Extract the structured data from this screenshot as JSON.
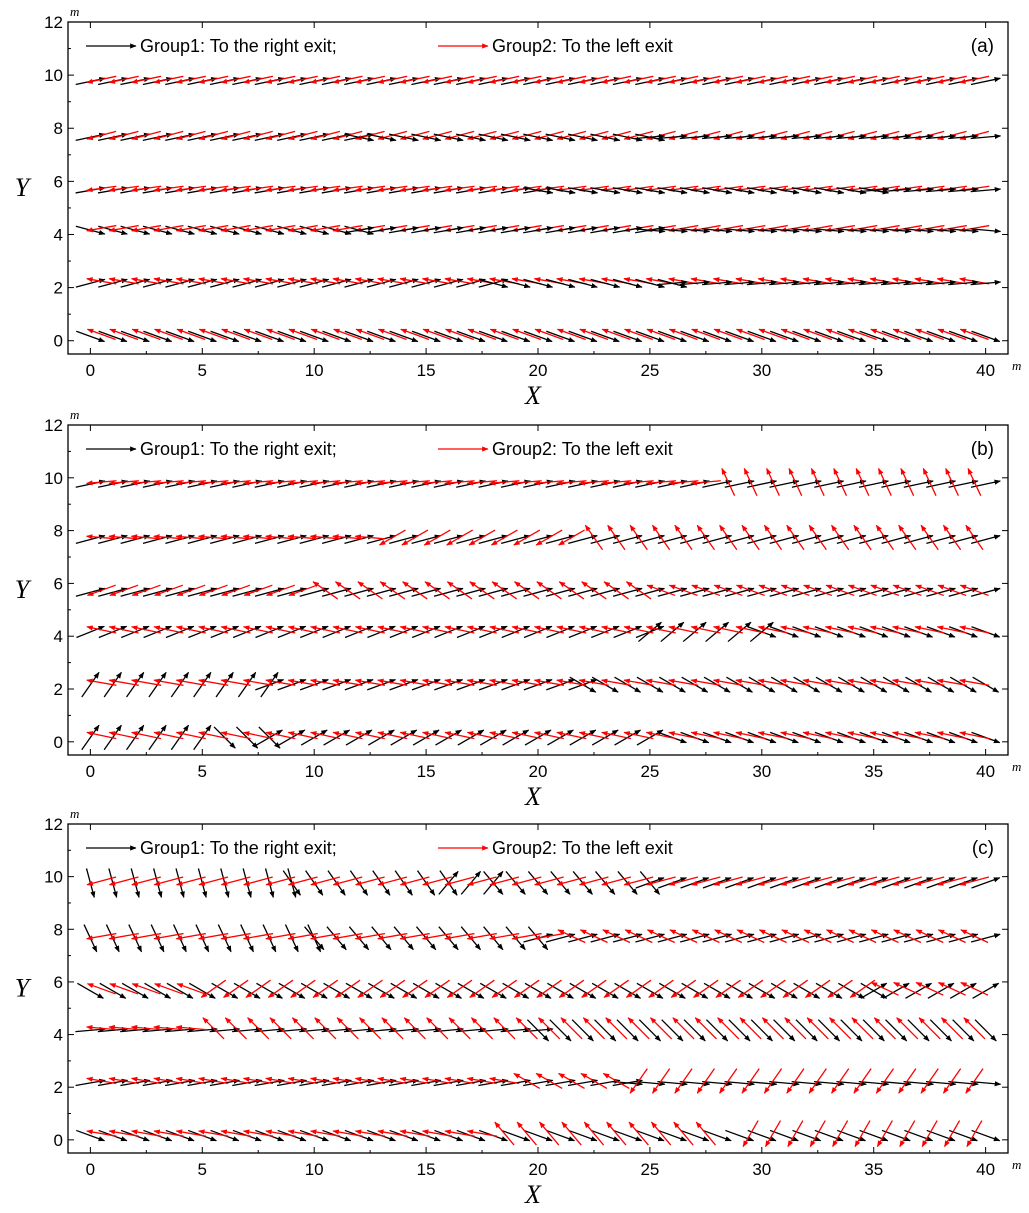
{
  "colors": {
    "group1": "#000000",
    "group2": "#ff0000"
  },
  "chart_data": [
    {
      "type": "quiver",
      "panel_label": "(a)",
      "xlabel": "X",
      "ylabel": "Y",
      "x_unit": "m",
      "y_unit": "m",
      "xlim": [
        -1,
        41
      ],
      "ylim": [
        -0.5,
        12
      ],
      "xticks": [
        "0",
        "5",
        "10",
        "15",
        "20",
        "25",
        "30",
        "35",
        "40"
      ],
      "yticks": [
        "0",
        "2",
        "4",
        "6",
        "8",
        "10",
        "12"
      ],
      "legend": [
        {
          "name": "Group1: To the right exit;",
          "color": "#000000"
        },
        {
          "name": "Group2: To the left exit",
          "color": "#ff0000"
        }
      ],
      "rows": [
        {
          "y": 0.2,
          "segments": [
            {
              "from": 0,
              "to": 40,
              "group": 1,
              "angle": -20
            },
            {
              "from": 0,
              "to": 40,
              "group": 2,
              "angle": 20
            }
          ]
        },
        {
          "y": 2.2,
          "segments": [
            {
              "from": 0,
              "to": 18,
              "group": 1,
              "angle": 15
            },
            {
              "from": 0,
              "to": 40,
              "group": 2,
              "angle": 10
            },
            {
              "from": 18,
              "to": 26,
              "group": 1,
              "angle": -15
            },
            {
              "from": 26,
              "to": 40,
              "group": 1,
              "angle": 5
            }
          ]
        },
        {
          "y": 4.2,
          "segments": [
            {
              "from": 0,
              "to": 12,
              "group": 1,
              "angle": -15
            },
            {
              "from": 0,
              "to": 40,
              "group": 2,
              "angle": -10
            },
            {
              "from": 12,
              "to": 25,
              "group": 1,
              "angle": 10
            },
            {
              "from": 25,
              "to": 40,
              "group": 1,
              "angle": -5
            }
          ]
        },
        {
          "y": 5.7,
          "segments": [
            {
              "from": 0,
              "to": 20,
              "group": 1,
              "angle": 10
            },
            {
              "from": 0,
              "to": 40,
              "group": 2,
              "angle": -8
            },
            {
              "from": 20,
              "to": 35,
              "group": 1,
              "angle": -10
            },
            {
              "from": 35,
              "to": 40,
              "group": 1,
              "angle": 5
            }
          ]
        },
        {
          "y": 7.7,
          "segments": [
            {
              "from": 0,
              "to": 12,
              "group": 1,
              "angle": 12
            },
            {
              "from": 0,
              "to": 40,
              "group": 2,
              "angle": -15
            },
            {
              "from": 12,
              "to": 25,
              "group": 1,
              "angle": -12
            },
            {
              "from": 25,
              "to": 40,
              "group": 1,
              "angle": 5
            }
          ]
        },
        {
          "y": 9.8,
          "segments": [
            {
              "from": 0,
              "to": 40,
              "group": 1,
              "angle": 12
            },
            {
              "from": 0,
              "to": 40,
              "group": 2,
              "angle": -12
            }
          ]
        }
      ]
    },
    {
      "type": "quiver",
      "panel_label": "(b)",
      "xlabel": "X",
      "ylabel": "Y",
      "x_unit": "m",
      "y_unit": "m",
      "xlim": [
        -1,
        41
      ],
      "ylim": [
        -0.5,
        12
      ],
      "xticks": [
        "0",
        "5",
        "10",
        "15",
        "20",
        "25",
        "30",
        "35",
        "40"
      ],
      "yticks": [
        "0",
        "2",
        "4",
        "6",
        "8",
        "10",
        "12"
      ],
      "legend": [
        {
          "name": "Group1: To the right exit;",
          "color": "#000000"
        },
        {
          "name": "Group2: To the left exit",
          "color": "#ff0000"
        }
      ],
      "rows": [
        {
          "y": 0.2,
          "segments": [
            {
              "from": 0,
              "to": 5,
              "group": 1,
              "angle": 55
            },
            {
              "from": 6,
              "to": 8,
              "group": 1,
              "angle": -45
            },
            {
              "from": 8,
              "to": 25,
              "group": 1,
              "angle": 30
            },
            {
              "from": 26,
              "to": 40,
              "group": 1,
              "angle": -20
            },
            {
              "from": 0,
              "to": 40,
              "group": 2,
              "angle": 12
            }
          ]
        },
        {
          "y": 2.2,
          "segments": [
            {
              "from": 0,
              "to": 8,
              "group": 1,
              "angle": 55
            },
            {
              "from": 8,
              "to": 22,
              "group": 1,
              "angle": 20
            },
            {
              "from": 22,
              "to": 40,
              "group": 1,
              "angle": -30
            },
            {
              "from": 0,
              "to": 40,
              "group": 2,
              "angle": 10
            }
          ]
        },
        {
          "y": 4.2,
          "segments": [
            {
              "from": 0,
              "to": 25,
              "group": 1,
              "angle": 22
            },
            {
              "from": 25,
              "to": 30,
              "group": 1,
              "angle": 40
            },
            {
              "from": 30,
              "to": 40,
              "group": 1,
              "angle": -20
            },
            {
              "from": 0,
              "to": 40,
              "group": 2,
              "angle": 12
            }
          ]
        },
        {
          "y": 5.7,
          "segments": [
            {
              "from": 0,
              "to": 40,
              "group": 1,
              "angle": 15
            },
            {
              "from": 0,
              "to": 10,
              "group": 2,
              "angle": -20
            },
            {
              "from": 10,
              "to": 25,
              "group": 2,
              "angle": 35
            },
            {
              "from": 25,
              "to": 40,
              "group": 2,
              "angle": 20
            }
          ]
        },
        {
          "y": 7.7,
          "segments": [
            {
              "from": 0,
              "to": 40,
              "group": 1,
              "angle": 15
            },
            {
              "from": 0,
              "to": 13,
              "group": 2,
              "angle": 5
            },
            {
              "from": 13,
              "to": 22,
              "group": 2,
              "angle": -30
            },
            {
              "from": 22,
              "to": 40,
              "group": 2,
              "angle": 55
            }
          ]
        },
        {
          "y": 9.8,
          "segments": [
            {
              "from": 0,
              "to": 40,
              "group": 1,
              "angle": 12
            },
            {
              "from": 0,
              "to": 28,
              "group": 2,
              "angle": -5
            },
            {
              "from": 28,
              "to": 40,
              "group": 2,
              "angle": 65
            }
          ]
        }
      ]
    },
    {
      "type": "quiver",
      "panel_label": "(c)",
      "xlabel": "X",
      "ylabel": "Y",
      "x_unit": "m",
      "y_unit": "m",
      "xlim": [
        -1,
        41
      ],
      "ylim": [
        -0.5,
        12
      ],
      "xticks": [
        "0",
        "5",
        "10",
        "15",
        "20",
        "25",
        "30",
        "35",
        "40"
      ],
      "yticks": [
        "0",
        "2",
        "4",
        "6",
        "8",
        "10",
        "12"
      ],
      "legend": [
        {
          "name": "Group1: To the right exit;",
          "color": "#000000"
        },
        {
          "name": "Group2: To the left exit",
          "color": "#ff0000"
        }
      ],
      "rows": [
        {
          "y": 0.2,
          "segments": [
            {
              "from": 0,
              "to": 40,
              "group": 1,
              "angle": -20
            },
            {
              "from": 0,
              "to": 18,
              "group": 2,
              "angle": 10
            },
            {
              "from": 18,
              "to": 28,
              "group": 2,
              "angle": 50
            },
            {
              "from": 29,
              "to": 40,
              "group": 2,
              "angle": -60
            }
          ]
        },
        {
          "y": 2.2,
          "segments": [
            {
              "from": 0,
              "to": 24,
              "group": 1,
              "angle": 10
            },
            {
              "from": 24,
              "to": 40,
              "group": 1,
              "angle": -5
            },
            {
              "from": 0,
              "to": 19,
              "group": 2,
              "angle": 10
            },
            {
              "from": 19,
              "to": 24,
              "group": 2,
              "angle": 30
            },
            {
              "from": 24,
              "to": 40,
              "group": 2,
              "angle": -55
            }
          ]
        },
        {
          "y": 4.2,
          "segments": [
            {
              "from": 0,
              "to": 20,
              "group": 1,
              "angle": 5
            },
            {
              "from": 20,
              "to": 40,
              "group": 1,
              "angle": -45
            },
            {
              "from": 0,
              "to": 5,
              "group": 2,
              "angle": 5
            },
            {
              "from": 5,
              "to": 40,
              "group": 2,
              "angle": 45
            }
          ]
        },
        {
          "y": 5.7,
          "segments": [
            {
              "from": 0,
              "to": 35,
              "group": 1,
              "angle": -30
            },
            {
              "from": 35,
              "to": 40,
              "group": 1,
              "angle": 30
            },
            {
              "from": 0,
              "to": 5,
              "group": 2,
              "angle": 20
            },
            {
              "from": 5,
              "to": 35,
              "group": 2,
              "angle": -35
            },
            {
              "from": 35,
              "to": 40,
              "group": 2,
              "angle": 25
            }
          ]
        },
        {
          "y": 7.7,
          "segments": [
            {
              "from": 0,
              "to": 10,
              "group": 1,
              "angle": -65
            },
            {
              "from": 10,
              "to": 20,
              "group": 1,
              "angle": -50
            },
            {
              "from": 20,
              "to": 40,
              "group": 1,
              "angle": 15
            },
            {
              "from": 0,
              "to": 21,
              "group": 2,
              "angle": -10
            },
            {
              "from": 21,
              "to": 40,
              "group": 2,
              "angle": 25
            }
          ]
        },
        {
          "y": 9.8,
          "segments": [
            {
              "from": 0,
              "to": 9,
              "group": 1,
              "angle": -75
            },
            {
              "from": 9,
              "to": 16,
              "group": 1,
              "angle": -55
            },
            {
              "from": 16,
              "to": 18,
              "group": 1,
              "angle": 50
            },
            {
              "from": 18,
              "to": 25,
              "group": 1,
              "angle": -50
            },
            {
              "from": 25,
              "to": 40,
              "group": 1,
              "angle": 20
            },
            {
              "from": 0,
              "to": 40,
              "group": 2,
              "angle": -15
            }
          ]
        }
      ]
    }
  ]
}
